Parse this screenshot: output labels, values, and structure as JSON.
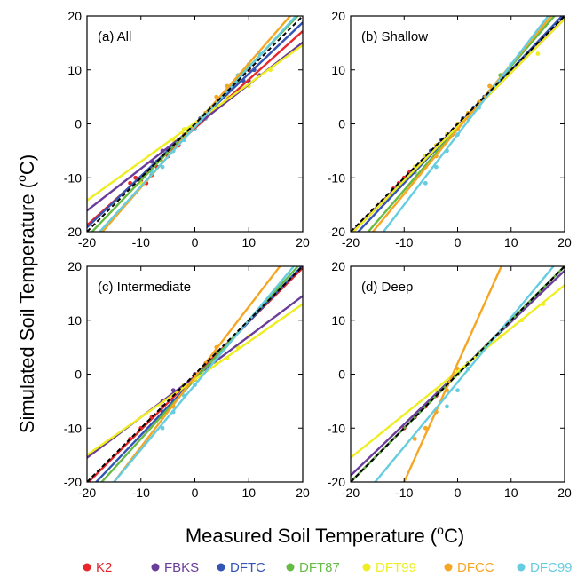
{
  "figure": {
    "ylabel": "Simulated Soil Temperature (",
    "xlabel": "Measured Soil Temperature (",
    "unit_sup": "o",
    "unit_tail": "C)"
  },
  "chart_data": [
    {
      "type": "scatter",
      "title": "(a) All",
      "xlim": [
        -20,
        20
      ],
      "ylim": [
        -20,
        20
      ],
      "xticks": [
        -20,
        -10,
        0,
        10,
        20
      ],
      "yticks": [
        -20,
        -10,
        0,
        10,
        20
      ],
      "series": [
        {
          "name": "K2",
          "color": "#e8262b",
          "fit": {
            "slope": 0.9,
            "intercept": -0.8
          },
          "x": [
            -12,
            -11,
            -10,
            -9,
            -8,
            -7,
            -5,
            -3,
            0,
            2,
            4,
            6,
            8,
            10
          ],
          "y": [
            -11,
            -10,
            -10.5,
            -11,
            -9.5,
            -8,
            -6,
            -4,
            -1,
            1,
            3,
            5,
            8,
            10
          ]
        },
        {
          "name": "FBKS",
          "color": "#6a3d9a",
          "fit": {
            "slope": 0.78,
            "intercept": -0.5
          },
          "x": [
            -8,
            -6,
            -4,
            -2,
            0,
            2,
            4,
            6,
            8,
            10,
            12
          ],
          "y": [
            -7,
            -5,
            -4,
            -2,
            0,
            2,
            3,
            5,
            6,
            8,
            9
          ]
        },
        {
          "name": "DFTC",
          "color": "#3355b3",
          "fit": {
            "slope": 0.95,
            "intercept": -0.2
          },
          "x": [
            -9,
            -7,
            -5,
            -3,
            -1,
            1,
            3,
            5,
            7,
            9,
            11
          ],
          "y": [
            -9,
            -7,
            -5,
            -3,
            -1,
            1,
            3,
            5,
            7,
            8,
            10
          ]
        },
        {
          "name": "DFT87",
          "color": "#66bb44",
          "fit": {
            "slope": 1.05,
            "intercept": 0
          },
          "x": [
            -10,
            -6,
            -4,
            -2,
            0,
            2,
            4,
            6,
            8,
            10
          ],
          "y": [
            -10,
            -6,
            -5,
            -2,
            0,
            2,
            4,
            6,
            8,
            11
          ]
        },
        {
          "name": "DFT99",
          "color": "#eeee22",
          "fit": {
            "slope": 0.72,
            "intercept": 0.2
          },
          "x": [
            -10,
            -8,
            -6,
            -4,
            -2,
            0,
            2,
            4,
            6,
            8,
            10,
            14
          ],
          "y": [
            -11,
            -9,
            -6,
            -3,
            -1,
            0,
            1,
            3,
            5,
            6,
            7,
            10
          ]
        },
        {
          "name": "DFCC",
          "color": "#f5a623",
          "fit": {
            "slope": 1.15,
            "intercept": -0.3
          },
          "x": [
            -8,
            -6,
            -4,
            -2,
            0,
            2,
            4,
            6,
            8,
            10
          ],
          "y": [
            -9,
            -7,
            -5,
            -2,
            0,
            2,
            5,
            7,
            9,
            11
          ]
        },
        {
          "name": "DFC99",
          "color": "#66cce0",
          "fit": {
            "slope": 1.1,
            "intercept": -0.6
          },
          "x": [
            -8,
            -6,
            -4,
            -2,
            0,
            2,
            4,
            6,
            8,
            10,
            12
          ],
          "y": [
            -9,
            -8,
            -5,
            -3,
            -1,
            1,
            4,
            6,
            9,
            11,
            13
          ]
        }
      ]
    },
    {
      "type": "scatter",
      "title": "(b) Shallow",
      "xlim": [
        -20,
        20
      ],
      "ylim": [
        -20,
        20
      ],
      "xticks": [
        -20,
        -10,
        0,
        10,
        20
      ],
      "yticks": [
        -20,
        -10,
        0,
        10,
        20
      ],
      "series": [
        {
          "name": "K2",
          "color": "#e8262b",
          "fit": {
            "slope": 1.0,
            "intercept": -0.5
          },
          "x": [
            -12,
            -11,
            -10,
            -9,
            -8,
            -6,
            -4,
            -2,
            0,
            2,
            4
          ],
          "y": [
            -12,
            -11,
            -10,
            -9,
            -8,
            -6,
            -4,
            -2,
            0,
            2,
            4
          ]
        },
        {
          "name": "FBKS",
          "color": "#6a3d9a",
          "fit": {
            "slope": 1.0,
            "intercept": -0.3
          },
          "x": [
            -6,
            -4,
            -2,
            0,
            2,
            4,
            6,
            8
          ],
          "y": [
            -6,
            -4,
            -2,
            0,
            2,
            4,
            6,
            8
          ]
        },
        {
          "name": "DFTC",
          "color": "#3355b3",
          "fit": {
            "slope": 1.05,
            "intercept": -0.5
          },
          "x": [
            -5,
            -3,
            -1,
            1,
            3,
            5,
            7
          ],
          "y": [
            -5,
            -3,
            -2,
            1,
            3,
            5,
            7
          ]
        },
        {
          "name": "DFT87",
          "color": "#66bb44",
          "fit": {
            "slope": 1.15,
            "intercept": -0.8
          },
          "x": [
            -8,
            -6,
            -4,
            -2,
            0,
            2,
            4,
            6,
            8
          ],
          "y": [
            -9,
            -8,
            -5,
            -3,
            -1,
            2,
            4,
            7,
            9
          ]
        },
        {
          "name": "DFT99",
          "color": "#eeee22",
          "fit": {
            "slope": 1.0,
            "intercept": -0.5
          },
          "x": [
            -8,
            -6,
            -4,
            -2,
            0,
            2,
            4,
            6,
            8,
            10,
            15
          ],
          "y": [
            -8,
            -6,
            -4,
            -2,
            0,
            2,
            4,
            6,
            8,
            10,
            13
          ]
        },
        {
          "name": "DFCC",
          "color": "#f5a623",
          "fit": {
            "slope": 1.2,
            "intercept": -1
          },
          "x": [
            -6,
            -4,
            -2,
            0,
            2,
            4,
            6
          ],
          "y": [
            -8,
            -6,
            -3,
            -1,
            2,
            4,
            7
          ]
        },
        {
          "name": "DFC99",
          "color": "#66cce0",
          "fit": {
            "slope": 1.3,
            "intercept": -2
          },
          "x": [
            -6,
            -4,
            -2,
            0,
            2,
            4,
            6,
            8,
            10
          ],
          "y": [
            -11,
            -8,
            -5,
            -2,
            1,
            3,
            6,
            8,
            11
          ]
        }
      ]
    },
    {
      "type": "scatter",
      "title": "(c) Intermediate",
      "xlim": [
        -20,
        20
      ],
      "ylim": [
        -20,
        20
      ],
      "xticks": [
        -20,
        -10,
        0,
        10,
        20
      ],
      "yticks": [
        -20,
        -10,
        0,
        10,
        20
      ],
      "series": [
        {
          "name": "K2",
          "color": "#e8262b",
          "fit": {
            "slope": 1.0,
            "intercept": -0.3
          },
          "x": [
            -12,
            -10,
            -8,
            -6,
            -4,
            -2,
            0,
            2,
            4
          ],
          "y": [
            -12,
            -10,
            -8,
            -6,
            -4,
            -2,
            0,
            2,
            4
          ]
        },
        {
          "name": "FBKS",
          "color": "#6a3d9a",
          "fit": {
            "slope": 0.75,
            "intercept": -0.5
          },
          "x": [
            -6,
            -4,
            -2,
            0,
            2,
            4
          ],
          "y": [
            -5,
            -3,
            -2,
            0,
            1,
            3
          ]
        },
        {
          "name": "DFTC",
          "color": "#3355b3",
          "fit": {
            "slope": 1.05,
            "intercept": -0.8
          },
          "x": [
            -6,
            -4,
            -2,
            0,
            2
          ],
          "y": [
            -7,
            -5,
            -3,
            -1,
            1
          ]
        },
        {
          "name": "DFT87",
          "color": "#66bb44",
          "fit": {
            "slope": 1.1,
            "intercept": -1
          },
          "x": [
            -6,
            -4,
            -2,
            0,
            2,
            4
          ],
          "y": [
            -8,
            -6,
            -3,
            -1,
            1,
            4
          ]
        },
        {
          "name": "DFT99",
          "color": "#eeee22",
          "fit": {
            "slope": 0.7,
            "intercept": -1
          },
          "x": [
            -4,
            -2,
            0,
            2,
            4,
            6,
            8,
            10
          ],
          "y": [
            -4,
            -2,
            -1,
            1,
            2,
            3,
            5,
            7
          ]
        },
        {
          "name": "DFCC",
          "color": "#f5a623",
          "fit": {
            "slope": 1.3,
            "intercept": -0.5
          },
          "x": [
            -4,
            -2,
            0,
            2,
            4
          ],
          "y": [
            -6,
            -3,
            -1,
            2,
            5
          ]
        },
        {
          "name": "DFC99",
          "color": "#66cce0",
          "fit": {
            "slope": 1.2,
            "intercept": -2
          },
          "x": [
            -6,
            -4,
            -2,
            0,
            2,
            4
          ],
          "y": [
            -10,
            -7,
            -4,
            -2,
            1,
            3
          ]
        }
      ]
    },
    {
      "type": "scatter",
      "title": "(d) Deep",
      "xlim": [
        -20,
        20
      ],
      "ylim": [
        -20,
        20
      ],
      "xticks": [
        -20,
        -10,
        0,
        10,
        20
      ],
      "yticks": [
        -20,
        -10,
        0,
        10,
        20
      ],
      "series": [
        {
          "name": "K2",
          "color": "#e8262b",
          "fit": {
            "slope": 1.0,
            "intercept": 0
          },
          "x": [
            -10,
            -8,
            -6,
            -4,
            -2,
            0,
            2
          ],
          "y": [
            -10,
            -8,
            -6,
            -4,
            -2,
            0,
            2
          ]
        },
        {
          "name": "FBKS",
          "color": "#6a3d9a",
          "fit": {
            "slope": 0.95,
            "intercept": 0.2
          },
          "x": [
            -2,
            0,
            2,
            4
          ],
          "y": [
            -2,
            0,
            2,
            4
          ]
        },
        {
          "name": "DFTC",
          "color": "#3355b3",
          "fit": {
            "slope": 1.0,
            "intercept": 0
          },
          "x": [
            -2,
            0,
            2
          ],
          "y": [
            -2,
            0,
            2
          ]
        },
        {
          "name": "DFT87",
          "color": "#66bb44",
          "fit": {
            "slope": 1.0,
            "intercept": 0
          },
          "x": [
            -2,
            0,
            2
          ],
          "y": [
            -2,
            0,
            2
          ]
        },
        {
          "name": "DFT99",
          "color": "#eeee22",
          "fit": {
            "slope": 0.8,
            "intercept": 0.5
          },
          "x": [
            -4,
            0,
            4,
            8,
            12,
            16
          ],
          "y": [
            -3,
            0,
            4,
            7,
            10,
            13
          ]
        },
        {
          "name": "DFCC",
          "color": "#f5a623",
          "fit": {
            "slope": 2.2,
            "intercept": 2
          },
          "x": [
            -8,
            -6,
            -4,
            -2,
            0
          ],
          "y": [
            -12,
            -10,
            -7,
            -3,
            1
          ]
        },
        {
          "name": "DFC99",
          "color": "#66cce0",
          "fit": {
            "slope": 1.2,
            "intercept": -1.5
          },
          "x": [
            -2,
            0,
            2,
            4
          ],
          "y": [
            -6,
            -3,
            1,
            4
          ]
        }
      ]
    }
  ],
  "legend": [
    {
      "name": "K2",
      "color": "#e8262b"
    },
    {
      "name": "FBKS",
      "color": "#6a3d9a"
    },
    {
      "name": "DFTC",
      "color": "#3355b3"
    },
    {
      "name": "DFT87",
      "color": "#66bb44"
    },
    {
      "name": "DFT99",
      "color": "#eeee22"
    },
    {
      "name": "DFCC",
      "color": "#f5a623"
    },
    {
      "name": "DFC99",
      "color": "#66cce0"
    }
  ]
}
